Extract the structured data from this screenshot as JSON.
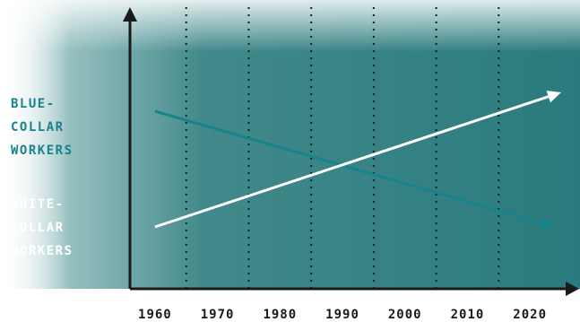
{
  "chart_data": {
    "type": "line",
    "title": "",
    "xlabel": "",
    "ylabel": "",
    "x_ticks": [
      "1960",
      "1970",
      "1980",
      "1990",
      "2000",
      "2010",
      "2020"
    ],
    "xlim": [
      1956,
      2026
    ],
    "ylim": [
      0,
      100
    ],
    "grid": "vertical-dotted",
    "series": [
      {
        "name": "BLUE-\nCOLLAR\nWORKERS",
        "color": "#17838a",
        "x": [
          1960,
          2024
        ],
        "y": [
          66,
          23
        ]
      },
      {
        "name": "WHITE-\nCOLLAR\nWORKERS",
        "color": "#ffffff",
        "x": [
          1960,
          2025
        ],
        "y": [
          23,
          73
        ]
      }
    ],
    "colors": {
      "background_dark": "#1f7476",
      "background_light": "#ffffff",
      "axis": "#1a1a1a",
      "grid": "#1a1a1a"
    }
  }
}
